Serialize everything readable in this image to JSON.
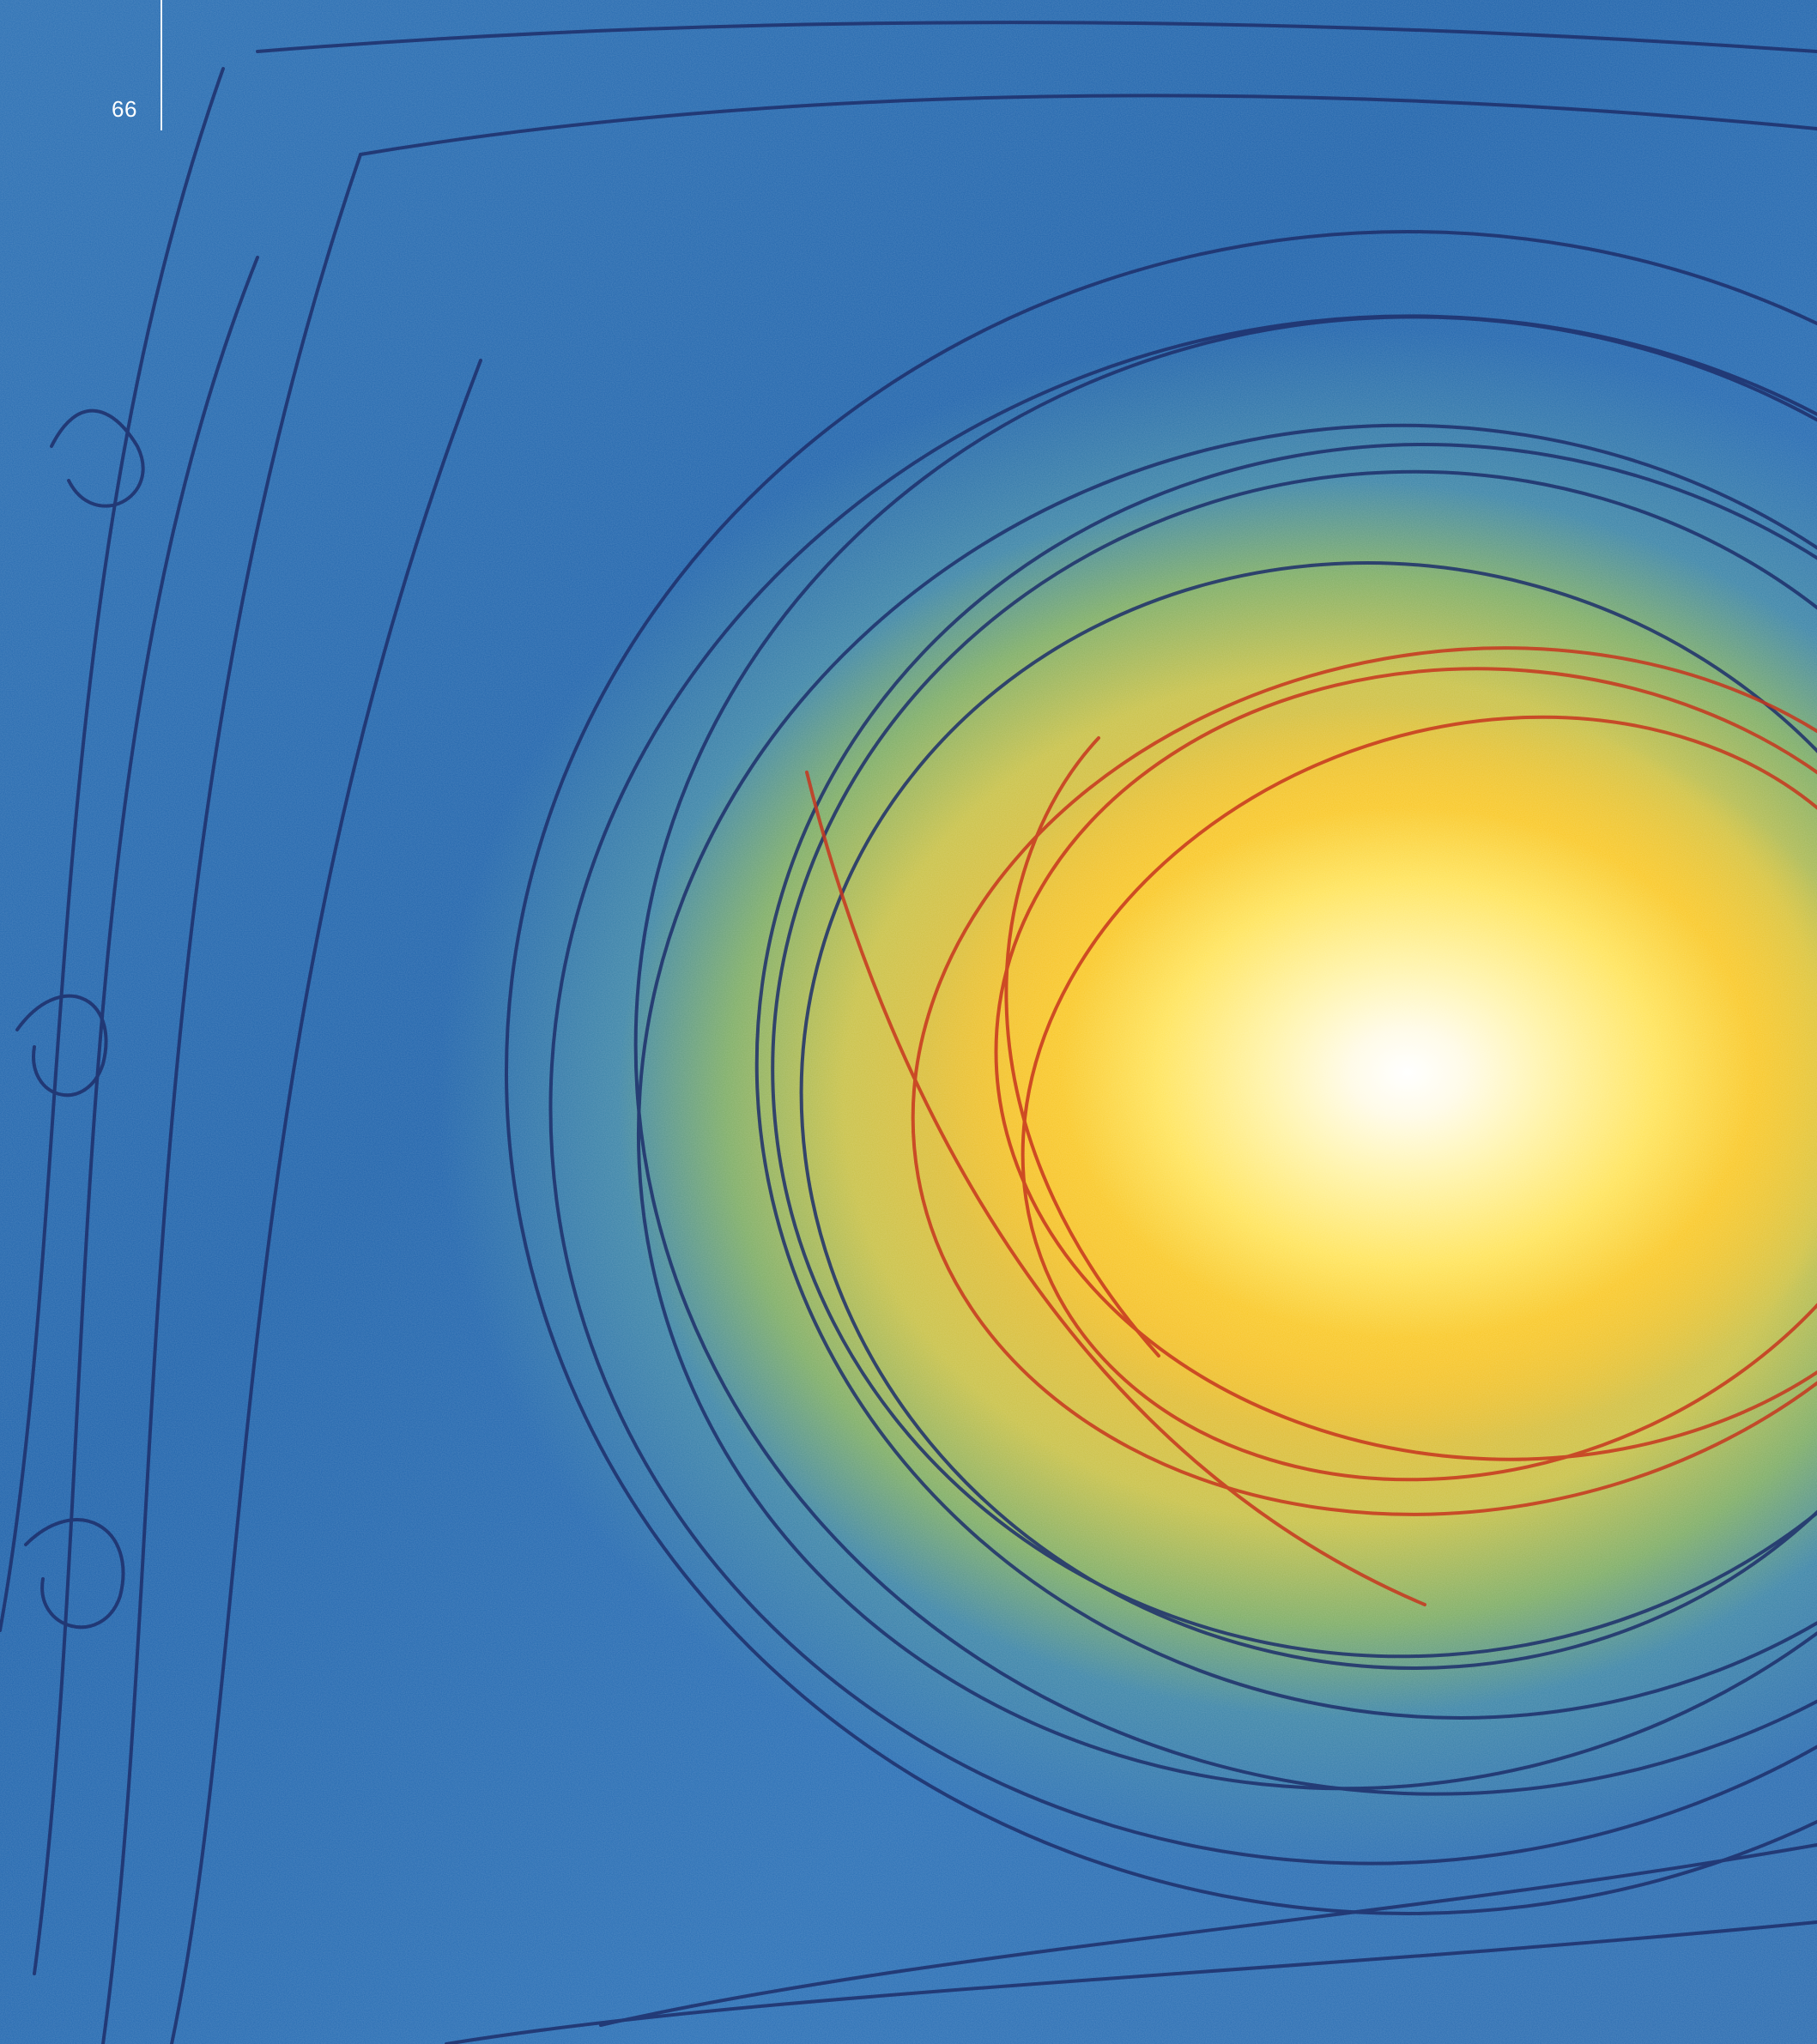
{
  "page": {
    "folio": "66"
  },
  "illustration": {
    "subject": "sun-swirl-artwork",
    "colors": {
      "sky_blue": "#1f63ab",
      "sun_yellow": "#ffe45c",
      "sun_core": "#ffffff",
      "stroke_navy": "#1e2f6b",
      "stroke_red": "#c7361f"
    }
  }
}
